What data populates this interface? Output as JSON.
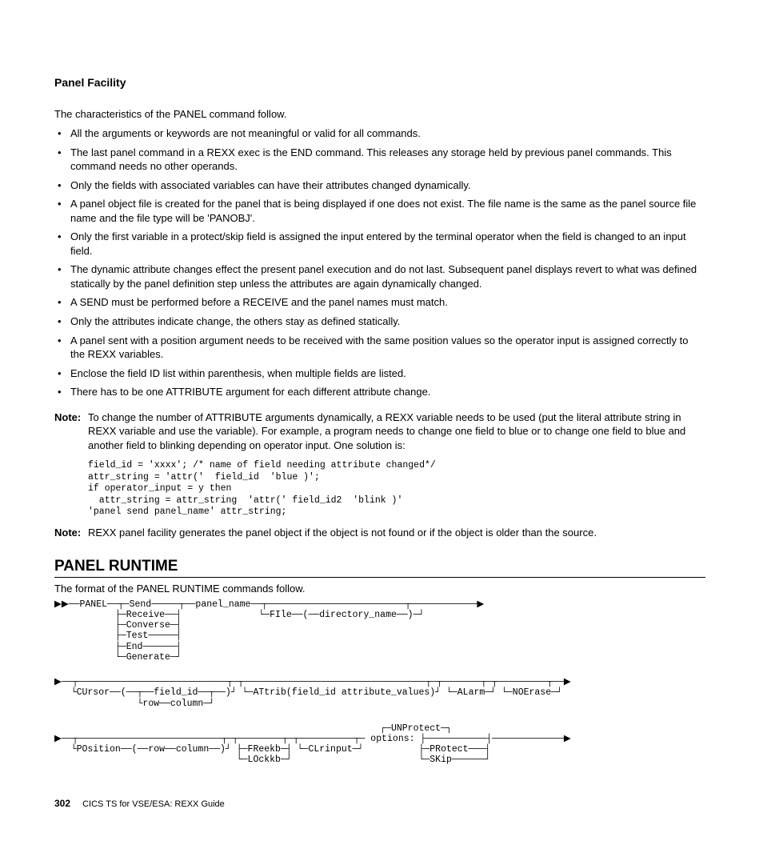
{
  "doc": {
    "title": "Panel Facility",
    "intro": "The characteristics of the PANEL command follow.",
    "bullets": [
      "All the arguments or keywords are not meaningful or valid for all commands.",
      "The last panel command in a REXX exec is the END command. This releases any storage held by previous panel commands. This command needs no other operands.",
      "Only the fields with associated variables can have their attributes changed dynamically.",
      "A panel object file is created for the panel that is being displayed if one does not exist. The file name is the same as the panel source file name and the file type will be 'PANOBJ'.",
      "Only the first variable in a protect/skip field is assigned the input entered by the terminal operator when the field is changed to an input field.",
      "The dynamic attribute changes effect the present panel execution and do not last. Subsequent panel displays revert to what was defined statically by the panel definition step unless the attributes are again dynamically changed.",
      "A SEND must be performed before a RECEIVE and the panel names must match.",
      "Only the attributes indicate change, the others stay as defined statically.",
      "A panel sent with a position argument needs to be received with the same position values so the operator input is assigned correctly to the REXX variables.",
      "Enclose the field ID list within parenthesis, when multiple fields are listed.",
      "There has to be one ATTRIBUTE argument for each different attribute change."
    ],
    "notes": [
      {
        "label": "Note:",
        "body": "To change the number of ATTRIBUTE arguments dynamically, a REXX variable needs to be used (put the literal attribute string in REXX variable and use the variable). For example, a program needs to change one field to blue or to change one field to blue and another field to blinking depending on operator input. One solution is:",
        "code": "field_id = 'xxxx'; /* name of field needing attribute changed*/\nattr_string = 'attr('  field_id  'blue )';\nif operator_input = y then\n  attr_string = attr_string  'attr(' field_id2  'blink )'\n'panel send panel_name' attr_string;"
      },
      {
        "label": "Note:",
        "body": "REXX panel facility generates the panel object if the object is not found or if the object is older than the source."
      }
    ],
    "runtime": {
      "heading": "PANEL RUNTIME",
      "intro": "The format of the PANEL RUNTIME commands follow.",
      "syntax1": "▶▶──PANEL──┬─Send─────┬──panel_name──┬─────────────────────────┬────────────▶\n           ├─Receive──┤              └─FIle──(──directory_name──)─┘\n           ├─Converse─┤\n           ├─Test─────┤\n           ├─End──────┤\n           └─Generate─┘",
      "syntax2": "▶──┬───────────────────────────┬─┬─────────────────────────────────┬─┬───────┬─┬─────────┬──▶\n   └CUrsor──(──┬──field_id──┬──)┘ └─ATtrib(field_id attribute_values)┘ └─ALarm─┘ └─NOErase─┘\n               └row──column─┘",
      "syntax3": "                                                           ┌─UNProtect─┐\n▶──┬──────────────────────────┬─┬────────┬─┬──────────┬─ options: ├───────────┤─────────────▶\n   └POsition──(──row──column──)┘ ├─FReekb─┤ └─CLrinput─┘          ├─PRotect───┤\n                                 └─LOckkb─┘                       └─SKip──────┘"
    },
    "footer": {
      "pagenum": "302",
      "booktitle": "CICS TS for VSE/ESA: REXX Guide"
    }
  },
  "colors": {
    "text": "#000000",
    "background": "#ffffff"
  }
}
